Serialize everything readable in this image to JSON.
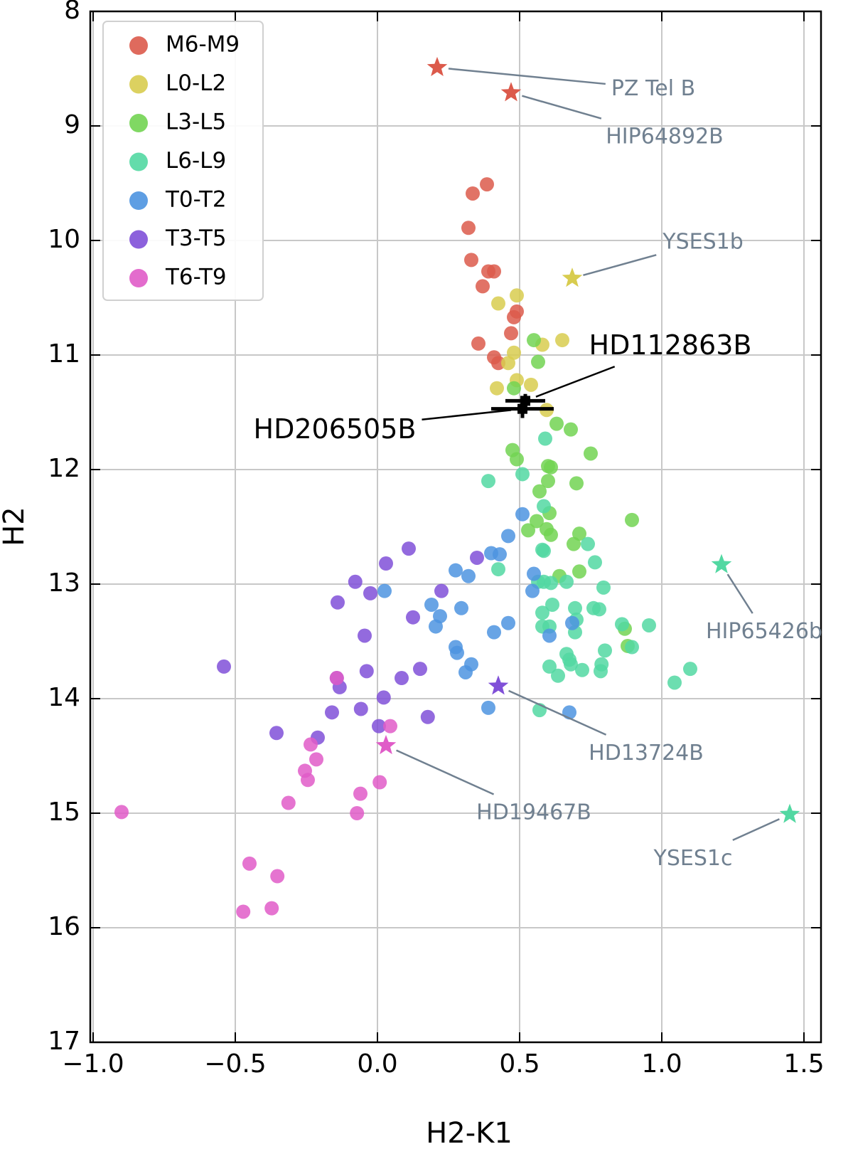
{
  "chart_data": {
    "type": "scatter",
    "xlabel": "H2-K1",
    "ylabel": "H2",
    "xlim": [
      -1.01,
      1.56
    ],
    "ylim": [
      17,
      8
    ],
    "xticks": [
      {
        "value": -1.0,
        "label": "−1.0"
      },
      {
        "value": -0.5,
        "label": "−0.5"
      },
      {
        "value": 0.0,
        "label": "0.0"
      },
      0.5,
      {
        "value": 1.0,
        "label": "1.0"
      },
      1.5
    ],
    "yticks": [
      8,
      9,
      10,
      11,
      12,
      13,
      14,
      15,
      16,
      17
    ],
    "grid": true,
    "legend": "upper left",
    "series": [
      {
        "name": "M6-M9",
        "color": "#dc5a4b",
        "x": [
          0.385,
          0.335,
          0.32,
          0.33,
          0.39,
          0.41,
          0.37,
          0.49,
          0.48,
          0.47,
          0.355,
          0.41,
          0.425
        ],
        "y": [
          9.51,
          9.59,
          9.89,
          10.17,
          10.27,
          10.27,
          10.4,
          10.62,
          10.67,
          10.81,
          10.9,
          11.02,
          11.07
        ]
      },
      {
        "name": "L0-L2",
        "color": "#d8cc4f",
        "x": [
          0.49,
          0.425,
          0.48,
          0.46,
          0.49,
          0.54,
          0.42,
          0.58,
          0.65,
          0.595
        ],
        "y": [
          10.48,
          10.55,
          10.98,
          11.07,
          11.22,
          11.26,
          11.29,
          10.91,
          10.87,
          11.48
        ]
      },
      {
        "name": "L3-L5",
        "color": "#72d452",
        "x": [
          0.55,
          0.565,
          0.48,
          0.63,
          0.68,
          0.475,
          0.49,
          0.6,
          0.61,
          0.75,
          0.6,
          0.57,
          0.605,
          0.7,
          0.56,
          0.53,
          0.595,
          0.61,
          0.71,
          0.69,
          0.895,
          0.64,
          0.71,
          0.87,
          0.88
        ],
        "y": [
          10.87,
          11.06,
          11.29,
          11.6,
          11.65,
          11.83,
          11.91,
          11.97,
          11.98,
          11.86,
          12.1,
          12.19,
          12.38,
          12.12,
          12.45,
          12.53,
          12.52,
          12.57,
          12.56,
          12.65,
          12.44,
          12.93,
          12.89,
          13.39,
          13.54
        ]
      },
      {
        "name": "L6-L9",
        "color": "#52d8a2",
        "x": [
          0.39,
          0.59,
          0.51,
          0.585,
          0.425,
          0.58,
          0.585,
          0.74,
          0.765,
          0.565,
          0.585,
          0.61,
          0.665,
          0.795,
          0.58,
          0.615,
          0.695,
          0.76,
          0.78,
          0.86,
          0.955,
          0.58,
          0.605,
          0.695,
          0.7,
          0.895,
          0.8,
          0.665,
          0.675,
          0.605,
          0.635,
          0.68,
          0.72,
          0.785,
          0.788,
          1.045,
          1.1,
          0.57
        ],
        "y": [
          12.1,
          11.73,
          12.04,
          12.32,
          12.87,
          12.7,
          12.71,
          12.65,
          12.81,
          12.98,
          12.98,
          12.99,
          12.98,
          13.03,
          13.25,
          13.18,
          13.21,
          13.21,
          13.22,
          13.35,
          13.36,
          13.37,
          13.37,
          13.42,
          13.31,
          13.55,
          13.58,
          13.61,
          13.66,
          13.72,
          13.8,
          13.7,
          13.75,
          13.76,
          13.7,
          13.86,
          13.74,
          14.1
        ]
      },
      {
        "name": "T0-T2",
        "color": "#4d94e0",
        "x": [
          0.51,
          0.46,
          0.4,
          0.43,
          0.55,
          0.275,
          0.32,
          0.025,
          0.545,
          0.19,
          0.22,
          0.295,
          0.205,
          0.46,
          0.41,
          0.605,
          0.685,
          0.275,
          0.28,
          0.33,
          0.31,
          0.39,
          0.675
        ],
        "y": [
          12.39,
          12.58,
          12.73,
          12.74,
          12.91,
          12.88,
          12.93,
          13.06,
          13.06,
          13.18,
          13.28,
          13.21,
          13.37,
          13.34,
          13.42,
          13.45,
          13.34,
          13.55,
          13.6,
          13.7,
          13.77,
          14.08,
          14.12
        ]
      },
      {
        "name": "T3-T5",
        "color": "#8050d8",
        "x": [
          0.11,
          0.03,
          -0.078,
          -0.14,
          -0.025,
          0.225,
          0.125,
          -0.045,
          0.35,
          -0.54,
          -0.038,
          -0.143,
          -0.133,
          0.15,
          0.085,
          0.022,
          -0.058,
          -0.16,
          0.177,
          -0.355,
          -0.21,
          0.005
        ],
        "y": [
          12.69,
          12.82,
          12.98,
          13.16,
          13.08,
          13.06,
          13.29,
          13.45,
          12.77,
          13.72,
          13.76,
          13.82,
          13.9,
          13.74,
          13.82,
          13.99,
          14.09,
          14.12,
          14.16,
          14.3,
          14.34,
          14.24
        ]
      },
      {
        "name": "T6-T9",
        "color": "#e05cc8",
        "x": [
          -0.143,
          0.045,
          -0.235,
          -0.215,
          -0.255,
          -0.245,
          0.008,
          -0.06,
          -0.313,
          -0.072,
          -0.9,
          -0.45,
          -0.352,
          -0.372,
          -0.472
        ],
        "y": [
          13.82,
          14.24,
          14.4,
          14.53,
          14.63,
          14.71,
          14.73,
          14.83,
          14.91,
          15.0,
          14.99,
          15.44,
          15.55,
          15.83,
          15.86
        ]
      }
    ],
    "stars": [
      {
        "name": "PZ Tel B",
        "color": "#dc5a4b",
        "x": 0.21,
        "y": 8.49,
        "label_x": 0.97,
        "label_y": 8.68
      },
      {
        "name": "HIP64892B",
        "color": "#dc5a4b",
        "x": 0.47,
        "y": 8.71,
        "label_x": 1.01,
        "label_y": 9.1
      },
      {
        "name": "YSES1b",
        "color": "#d8cc4f",
        "x": 0.685,
        "y": 10.33,
        "label_x": 1.145,
        "label_y": 10.02
      },
      {
        "name": "HIP65426b",
        "color": "#52d8a2",
        "x": 1.21,
        "y": 12.83,
        "label_x": 1.36,
        "label_y": 13.42
      },
      {
        "name": "HD13724B",
        "color": "#8050d8",
        "x": 0.425,
        "y": 13.89,
        "label_x": 0.945,
        "label_y": 14.48
      },
      {
        "name": "HD19467B",
        "color": "#e05cc8",
        "x": 0.03,
        "y": 14.41,
        "label_x": 0.55,
        "label_y": 15.0
      },
      {
        "name": "YSES1c",
        "color": "#52d8a2",
        "x": 1.45,
        "y": 15.01,
        "label_x": 1.11,
        "label_y": 15.4
      }
    ],
    "errorbars": [
      {
        "name": "HD112863B",
        "color": "#000000",
        "x": 0.52,
        "y": 11.4,
        "xerr": 0.07,
        "yerr": 0.06,
        "label_x": 1.03,
        "label_y": 10.93
      },
      {
        "name": "HD206505B",
        "color": "#000000",
        "x": 0.51,
        "y": 11.47,
        "xerr": 0.11,
        "yerr": 0.08,
        "label_x": -0.15,
        "label_y": 11.66
      }
    ]
  }
}
